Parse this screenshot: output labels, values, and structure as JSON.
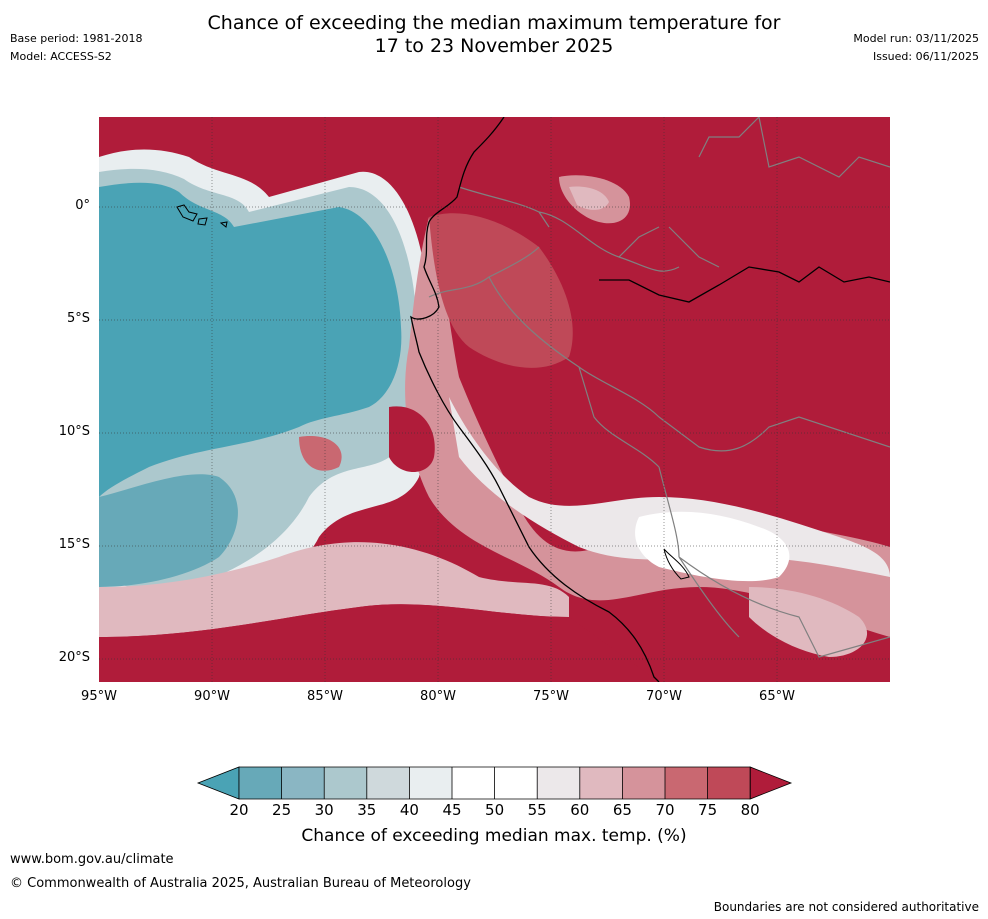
{
  "header": {
    "title_line1": "Chance of exceeding the median maximum temperature for",
    "title_line2": "17 to 23 November 2025",
    "base_period": "Base period: 1981-2018",
    "model": "Model: ACCESS-S2",
    "model_run": "Model run: 03/11/2025",
    "issued": "Issued: 06/11/2025"
  },
  "map": {
    "lat_labels": [
      "0°",
      "5°S",
      "10°S",
      "15°S",
      "20°S"
    ],
    "lon_labels": [
      "95°W",
      "90°W",
      "85°W",
      "80°W",
      "75°W",
      "70°W",
      "65°W"
    ]
  },
  "colorbar": {
    "ticks": [
      "20",
      "25",
      "30",
      "35",
      "40",
      "45",
      "50",
      "55",
      "60",
      "65",
      "70",
      "75",
      "80"
    ],
    "label": "Chance of exceeding median max. temp. (%)",
    "colors": {
      "under": "#4aa3b5",
      "c20_25": "#67a9b8",
      "c25_30": "#8ab6c3",
      "c30_35": "#acc8cd",
      "c35_40": "#cfd9dc",
      "c40_45": "#e9eef0",
      "c45_50": "#ffffff",
      "c50_55": "#ffffff",
      "c55_60": "#ece8ea",
      "c60_65": "#e0b9bf",
      "c65_70": "#d5939b",
      "c70_75": "#c96871",
      "c75_80": "#bf4958",
      "over": "#b01c3a"
    }
  },
  "footer": {
    "website": "www.bom.gov.au/climate",
    "copyright": "© Commonwealth of Australia 2025, Australian Bureau of Meteorology",
    "disclaimer": "Boundaries are not considered authoritative"
  }
}
